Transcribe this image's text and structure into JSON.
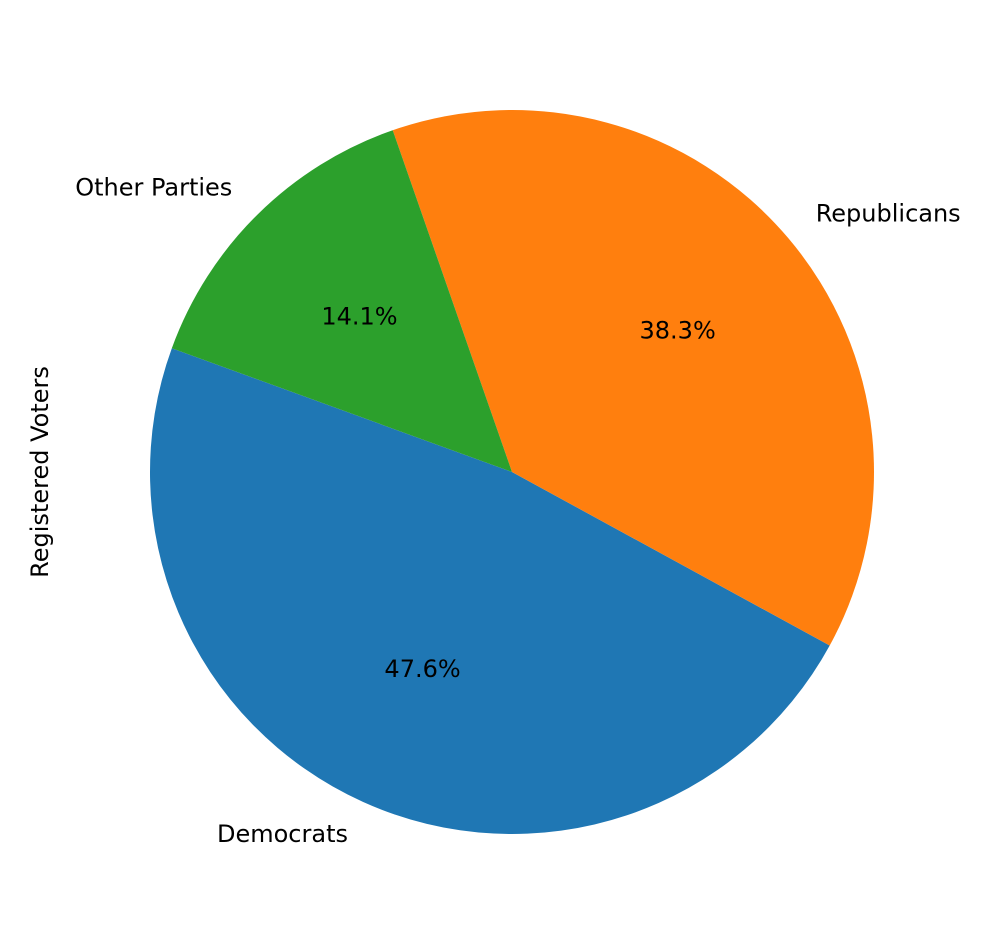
{
  "chart_data": {
    "type": "pie",
    "ylabel": "Registered Voters",
    "labels": [
      "Democrats",
      "Republicans",
      "Other Parties"
    ],
    "values": [
      47.6,
      38.3,
      14.1
    ],
    "percent_labels": [
      "47.6%",
      "38.3%",
      "14.1%"
    ],
    "colors": [
      "#1f77b4",
      "#ff7f0e",
      "#2ca02c"
    ],
    "start_angle_deg": 160,
    "direction": "counterclockwise",
    "legend": "none"
  }
}
